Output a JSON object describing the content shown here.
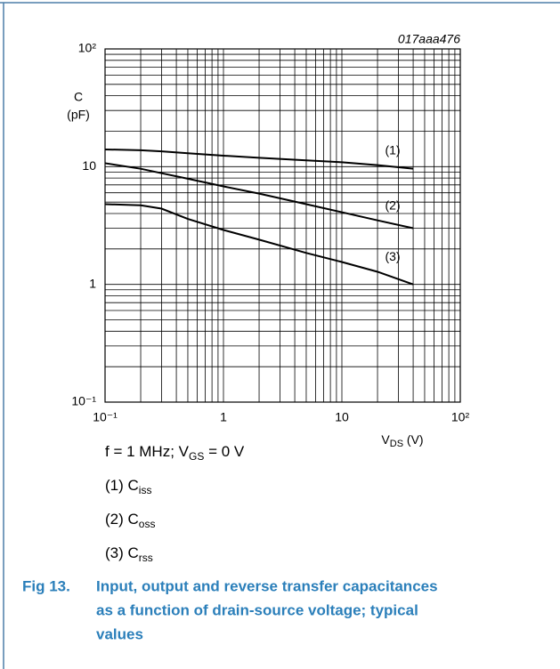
{
  "chart_data": {
    "type": "line",
    "annotation": "017aaa476",
    "ylabel": [
      "C",
      "(pF)"
    ],
    "xlabel": {
      "main": "V",
      "sub": "DS",
      "rest": " (V)"
    },
    "log_x": true,
    "log_y": true,
    "grid": true,
    "xlim": [
      0.1,
      100
    ],
    "ylim": [
      0.1,
      100
    ],
    "xticks": [
      {
        "value": 0.1,
        "label": "10⁻¹"
      },
      1,
      10,
      {
        "value": 100,
        "label": "10²"
      }
    ],
    "yticks": [
      {
        "value": 0.1,
        "label": "10⁻¹"
      },
      1,
      10,
      {
        "value": 100,
        "label": "10²"
      }
    ],
    "xminor_ticks": [
      0.2,
      0.3,
      0.4,
      0.5,
      0.6,
      0.7,
      0.8,
      0.9,
      2,
      3,
      4,
      5,
      6,
      7,
      8,
      9,
      20,
      30,
      40,
      50,
      60,
      70,
      80,
      90
    ],
    "yminor_ticks": [
      0.2,
      0.3,
      0.4,
      0.5,
      0.6,
      0.7,
      0.8,
      0.9,
      2,
      3,
      4,
      5,
      6,
      7,
      8,
      9,
      20,
      30,
      40,
      50,
      60,
      70,
      80,
      90
    ],
    "x": [
      0.1,
      0.2,
      0.3,
      0.5,
      1,
      2,
      5,
      10,
      20,
      40
    ],
    "series": [
      {
        "name": "(1)",
        "color": "#000000",
        "values": [
          14,
          13.8,
          13.5,
          13.0,
          12.4,
          11.9,
          11.3,
          10.9,
          10.3,
          9.6
        ]
      },
      {
        "name": "(2)",
        "color": "#000000",
        "values": [
          10.7,
          9.6,
          8.8,
          7.9,
          6.8,
          5.9,
          4.8,
          4.1,
          3.5,
          3.0
        ]
      },
      {
        "name": "(3)",
        "color": "#000000",
        "values": [
          4.8,
          4.7,
          4.4,
          3.6,
          2.9,
          2.4,
          1.85,
          1.55,
          1.28,
          1.0
        ]
      }
    ],
    "conditions": {
      "text": "f = 1 MHz; V",
      "sub": "GS",
      "rest": " = 0 V"
    },
    "notes": [
      {
        "label": "(1) C",
        "sub": "iss"
      },
      {
        "label": "(2) C",
        "sub": "oss"
      },
      {
        "label": "(3) C",
        "sub": "rss"
      }
    ],
    "figure": "Fig 13.",
    "caption_lines": [
      "Input, output and reverse transfer capacitances",
      "as a function of drain-source voltage; typical",
      "values"
    ]
  }
}
